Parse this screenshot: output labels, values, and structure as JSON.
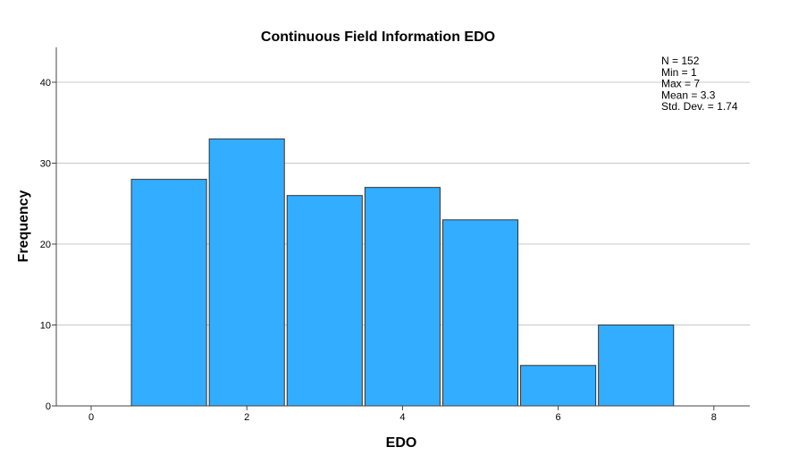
{
  "chart_data": {
    "type": "bar",
    "title": "Continuous Field Information EDO",
    "xlabel": "EDO",
    "ylabel": "Frequency",
    "x_bins": [
      1,
      2,
      3,
      4,
      5,
      6,
      7
    ],
    "values": [
      28,
      33,
      26,
      27,
      23,
      5,
      10
    ],
    "xlim": [
      0,
      8
    ],
    "ylim": [
      0,
      44
    ],
    "x_ticks": [
      "0",
      "2",
      "4",
      "6",
      "8"
    ],
    "y_ticks": [
      "0",
      "10",
      "20",
      "30",
      "40"
    ],
    "grid": "horizontal",
    "bar_color": "#33adff",
    "bar_edge_color": "#333333",
    "stats": [
      "N = 152",
      "Min = 1",
      "Max = 7",
      "Mean = 3.3",
      "Std. Dev. = 1.74"
    ]
  }
}
